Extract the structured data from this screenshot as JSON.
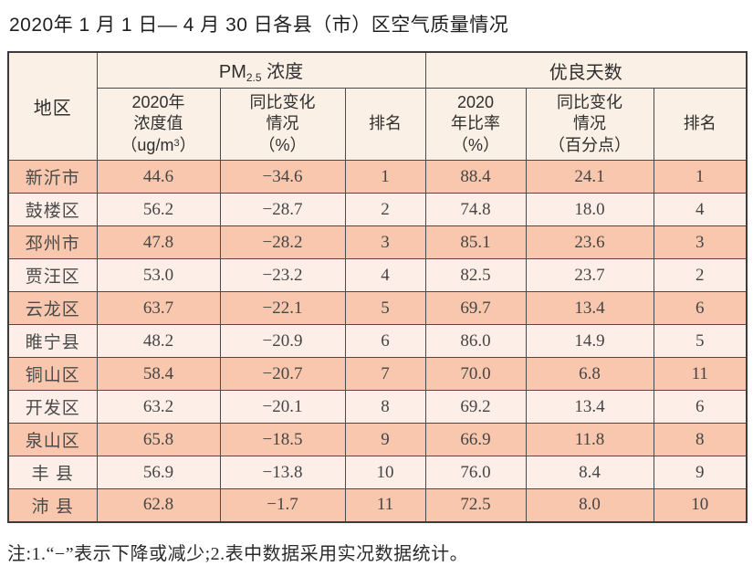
{
  "page": {
    "title": "2020年 1 月 1 日— 4 月 30 日各县（市）区空气质量情况",
    "footnote": "注:1.“−”表示下降或减少;2.表中数据采用实况数据统计。"
  },
  "colors": {
    "row_odd_bg": "#f8c7ad",
    "row_even_bg": "#fdefe8",
    "header_bg": "#fbf0e5",
    "border": "#4a4a4a",
    "text": "#2f2f2f"
  },
  "table": {
    "header": {
      "region": "地区",
      "pm_group": {
        "prefix": "PM",
        "sub": "2.5",
        "suffix": " 浓度"
      },
      "good_group": "优良天数",
      "pm_value": {
        "l1": "2020年",
        "l2": "浓度值",
        "unit_pre": "（ug/m",
        "unit_sup": "3",
        "unit_post": "）"
      },
      "pm_change": {
        "l1": "同比变化",
        "l2": "情况",
        "l3": "（%）"
      },
      "pm_rank": "排名",
      "good_ratio": {
        "l1": "2020",
        "l2": "年比率",
        "l3": "（%）"
      },
      "good_change": {
        "l1": "同比变化",
        "l2": "情况",
        "l3": "（百分点）"
      },
      "good_rank": "排名"
    },
    "rows": [
      {
        "region": "新沂市",
        "pm_value": "44.6",
        "pm_change": "−34.6",
        "pm_rank": "1",
        "ratio": "88.4",
        "ratio_change": "24.1",
        "ratio_rank": "1"
      },
      {
        "region": "鼓楼区",
        "pm_value": "56.2",
        "pm_change": "−28.7",
        "pm_rank": "2",
        "ratio": "74.8",
        "ratio_change": "18.0",
        "ratio_rank": "4"
      },
      {
        "region": "邳州市",
        "pm_value": "47.8",
        "pm_change": "−28.2",
        "pm_rank": "3",
        "ratio": "85.1",
        "ratio_change": "23.6",
        "ratio_rank": "3"
      },
      {
        "region": "贾汪区",
        "pm_value": "53.0",
        "pm_change": "−23.2",
        "pm_rank": "4",
        "ratio": "82.5",
        "ratio_change": "23.7",
        "ratio_rank": "2"
      },
      {
        "region": "云龙区",
        "pm_value": "63.7",
        "pm_change": "−22.1",
        "pm_rank": "5",
        "ratio": "69.7",
        "ratio_change": "13.4",
        "ratio_rank": "6"
      },
      {
        "region": "睢宁县",
        "pm_value": "48.2",
        "pm_change": "−20.9",
        "pm_rank": "6",
        "ratio": "86.0",
        "ratio_change": "14.9",
        "ratio_rank": "5"
      },
      {
        "region": "铜山区",
        "pm_value": "58.4",
        "pm_change": "−20.7",
        "pm_rank": "7",
        "ratio": "70.0",
        "ratio_change": "6.8",
        "ratio_rank": "11"
      },
      {
        "region": "开发区",
        "pm_value": "63.2",
        "pm_change": "−20.1",
        "pm_rank": "8",
        "ratio": "69.2",
        "ratio_change": "13.4",
        "ratio_rank": "6"
      },
      {
        "region": "泉山区",
        "pm_value": "65.8",
        "pm_change": "−18.5",
        "pm_rank": "9",
        "ratio": "66.9",
        "ratio_change": "11.8",
        "ratio_rank": "8"
      },
      {
        "region": "丰 县",
        "pm_value": "56.9",
        "pm_change": "−13.8",
        "pm_rank": "10",
        "ratio": "76.0",
        "ratio_change": "8.4",
        "ratio_rank": "9"
      },
      {
        "region": "沛 县",
        "pm_value": "62.8",
        "pm_change": "−1.7",
        "pm_rank": "11",
        "ratio": "72.5",
        "ratio_change": "8.0",
        "ratio_rank": "10"
      }
    ]
  }
}
